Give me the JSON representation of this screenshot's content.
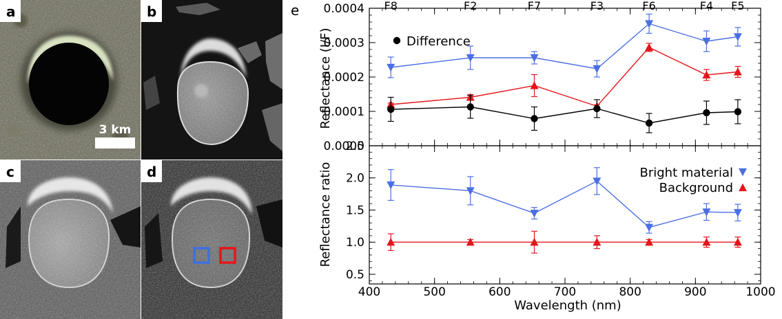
{
  "panels": {
    "a": {
      "label": "a",
      "scalebar_label": "3 km"
    },
    "b": {
      "label": "b"
    },
    "c": {
      "label": "c"
    },
    "d": {
      "label": "d"
    },
    "e": {
      "label": "e"
    }
  },
  "colors": {
    "bright": "#4a6fe3",
    "background": "#e3161b",
    "difference": "#000000",
    "box_bright": "#3f6fe0",
    "box_background": "#e8141b"
  },
  "chart_data": {
    "type": "line",
    "xlabel": "Wavelength (nm)",
    "xlim": [
      400,
      1000
    ],
    "xticks": [
      400,
      500,
      600,
      700,
      800,
      900,
      1000
    ],
    "filters": [
      {
        "name": "F8",
        "wavelength": 433
      },
      {
        "name": "F2",
        "wavelength": 555
      },
      {
        "name": "F7",
        "wavelength": 653
      },
      {
        "name": "F3",
        "wavelength": 749
      },
      {
        "name": "F6",
        "wavelength": 829
      },
      {
        "name": "F4",
        "wavelength": 917
      },
      {
        "name": "F5",
        "wavelength": 965
      }
    ],
    "top": {
      "ylabel": "Reflectance (I/F)",
      "ylim": [
        0,
        0.0004
      ],
      "yticks": [
        "0.0000",
        "0.0001",
        "0.0002",
        "0.0003",
        "0.0004"
      ],
      "legend": {
        "label": "Difference",
        "position": "top-left"
      },
      "series": [
        {
          "key": "bright",
          "marker": "triangle-down",
          "x": [
            433,
            555,
            653,
            749,
            829,
            917,
            965
          ],
          "y": [
            0.000228,
            0.000256,
            0.000256,
            0.000224,
            0.000355,
            0.000304,
            0.000317
          ],
          "err": [
            3e-05,
            3.4e-05,
            1.8e-05,
            2.4e-05,
            2.8e-05,
            3e-05,
            2.7e-05
          ]
        },
        {
          "key": "background",
          "marker": "triangle-up",
          "x": [
            433,
            555,
            653,
            749,
            829,
            917,
            965
          ],
          "y": [
            0.00012,
            0.000141,
            0.000175,
            0.000115,
            0.000286,
            0.000206,
            0.000215
          ],
          "err": [
            4e-06,
            8e-06,
            3.2e-05,
            4e-06,
            1.2e-05,
            1.6e-05,
            1.6e-05
          ]
        },
        {
          "key": "difference",
          "name": "Difference",
          "marker": "circle",
          "x": [
            433,
            555,
            653,
            749,
            829,
            917,
            965
          ],
          "y": [
            0.000106,
            0.000113,
            7.9e-05,
            0.000108,
            6.6e-05,
            9.6e-05,
            9.9e-05
          ],
          "err": [
            3.5e-05,
            3.3e-05,
            3.4e-05,
            2.6e-05,
            2.8e-05,
            3.4e-05,
            3.5e-05
          ]
        }
      ]
    },
    "bottom": {
      "ylabel": "Reflectance ratio",
      "ylim": [
        0.35,
        2.5
      ],
      "yticks": [
        "0.5",
        "1.0",
        "1.5",
        "2.0",
        "2.5"
      ],
      "legend_position": "top-right",
      "series": [
        {
          "key": "bright",
          "name": "Bright material",
          "marker": "triangle-down",
          "x": [
            433,
            555,
            653,
            749,
            829,
            917,
            965
          ],
          "y": [
            1.89,
            1.8,
            1.45,
            1.95,
            1.23,
            1.47,
            1.46
          ],
          "err": [
            0.24,
            0.22,
            0.09,
            0.21,
            0.09,
            0.13,
            0.13
          ]
        },
        {
          "key": "background",
          "name": "Background",
          "marker": "triangle-up",
          "x": [
            433,
            555,
            653,
            749,
            829,
            917,
            965
          ],
          "y": [
            1.0,
            1.0,
            1.0,
            1.0,
            1.0,
            1.0,
            1.0
          ],
          "err": [
            0.13,
            0.04,
            0.17,
            0.1,
            0.04,
            0.08,
            0.08
          ]
        }
      ]
    }
  }
}
